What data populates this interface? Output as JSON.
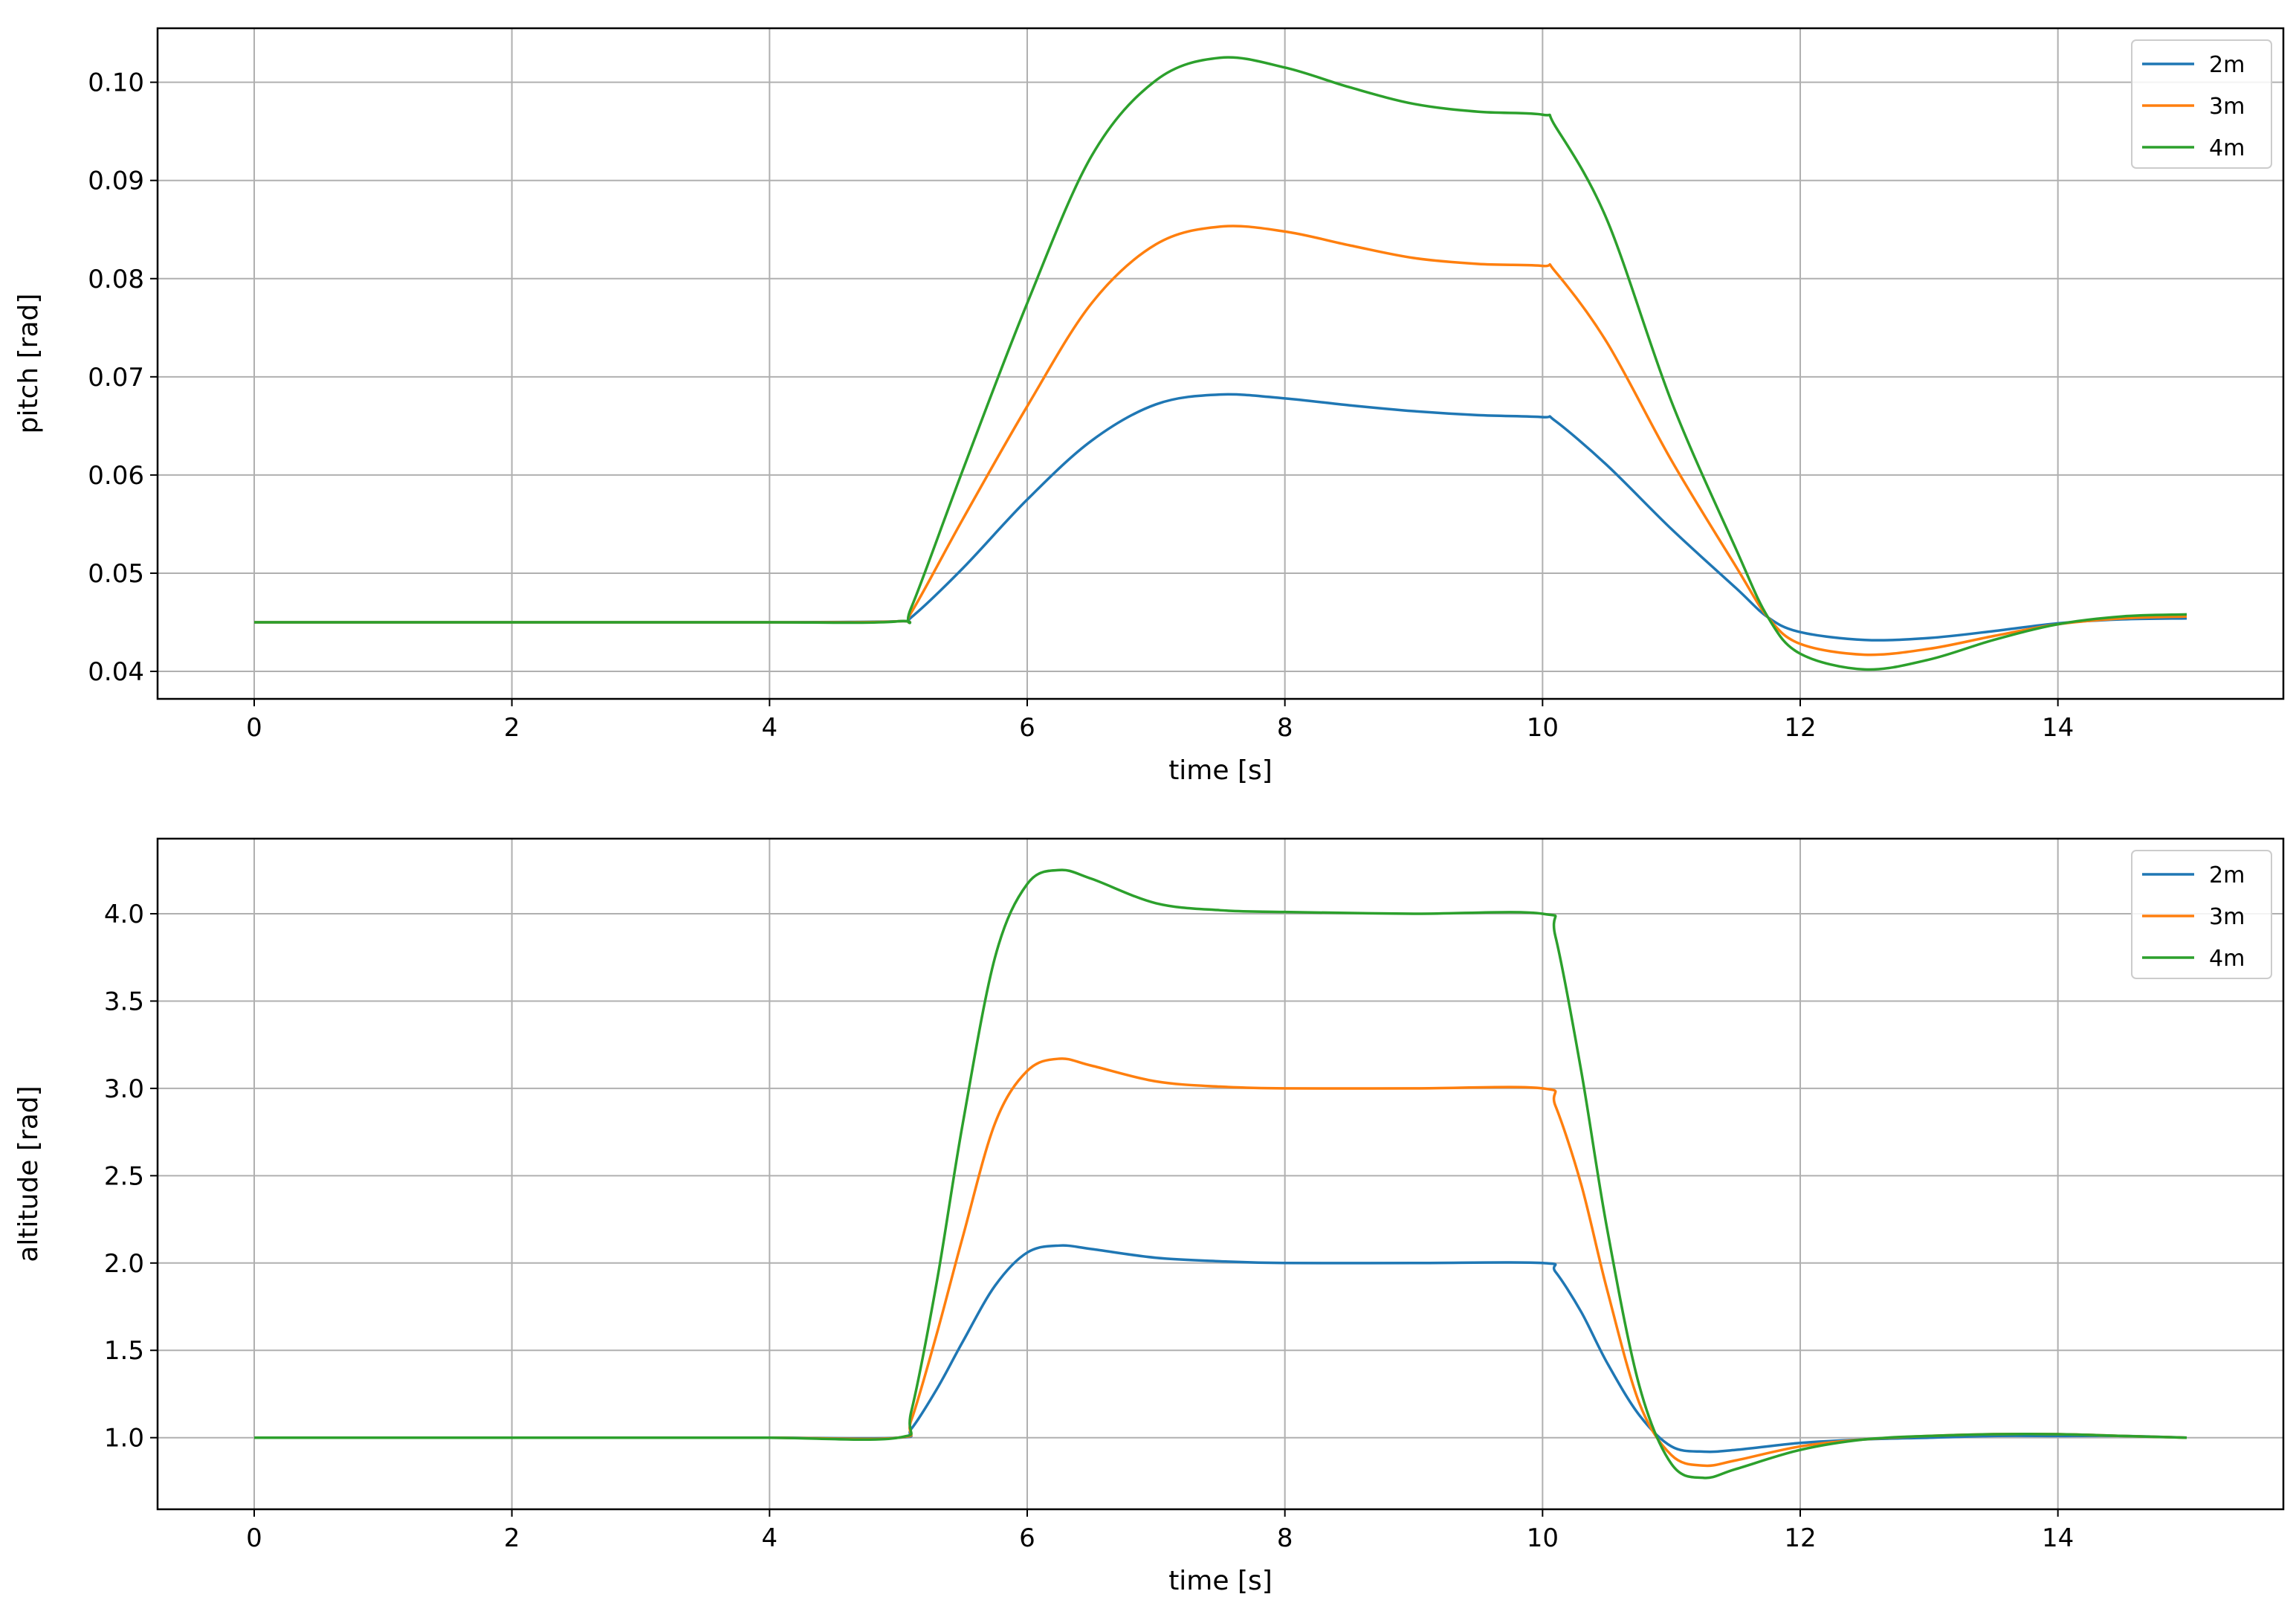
{
  "chart_data": [
    {
      "type": "line",
      "xlabel": "time [s]",
      "ylabel": "pitch [rad]",
      "xlim": [
        -0.75,
        15.75
      ],
      "ylim": [
        0.0372,
        0.1055
      ],
      "x_ticks": [
        0,
        2,
        4,
        6,
        8,
        10,
        12,
        14
      ],
      "x_tick_labels": [
        "0",
        "2",
        "4",
        "6",
        "8",
        "10",
        "12",
        "14"
      ],
      "y_ticks": [
        0.04,
        0.05,
        0.06,
        0.07,
        0.08,
        0.09,
        0.1
      ],
      "y_tick_labels": [
        "0.04",
        "0.05",
        "0.06",
        "0.07",
        "0.08",
        "0.09",
        "0.10"
      ],
      "grid": true,
      "legend_position": "top-right",
      "x": [
        0,
        1,
        2,
        3,
        4,
        5,
        5.1,
        5.5,
        6,
        6.5,
        7,
        7.5,
        8,
        8.5,
        9,
        9.5,
        10,
        10.1,
        10.5,
        11,
        11.5,
        11.75,
        12,
        12.5,
        13,
        13.5,
        14,
        14.5,
        15
      ],
      "series": [
        {
          "name": "2m",
          "color": "#1f77b4",
          "values": [
            0.045,
            0.045,
            0.045,
            0.045,
            0.045,
            0.0451,
            0.0455,
            0.0505,
            0.0575,
            0.0635,
            0.0672,
            0.0682,
            0.0678,
            0.0671,
            0.0665,
            0.0661,
            0.0659,
            0.0655,
            0.061,
            0.0545,
            0.0485,
            0.0455,
            0.044,
            0.0432,
            0.0434,
            0.0441,
            0.0449,
            0.0453,
            0.0454
          ]
        },
        {
          "name": "3m",
          "color": "#ff7f0e",
          "values": [
            0.045,
            0.045,
            0.045,
            0.045,
            0.045,
            0.0451,
            0.046,
            0.0555,
            0.067,
            0.0775,
            0.0835,
            0.0853,
            0.0848,
            0.0834,
            0.0821,
            0.0815,
            0.0813,
            0.0807,
            0.0735,
            0.0615,
            0.0507,
            0.0455,
            0.0428,
            0.0417,
            0.0423,
            0.0436,
            0.0448,
            0.0454,
            0.0456
          ]
        },
        {
          "name": "4m",
          "color": "#2ca02c",
          "values": [
            0.045,
            0.045,
            0.045,
            0.045,
            0.045,
            0.0451,
            0.0465,
            0.0605,
            0.0775,
            0.0925,
            0.1002,
            0.1025,
            0.1015,
            0.0995,
            0.0978,
            0.097,
            0.0967,
            0.0955,
            0.086,
            0.0675,
            0.0525,
            0.0455,
            0.0418,
            0.0402,
            0.0412,
            0.0432,
            0.0448,
            0.0456,
            0.0458
          ]
        }
      ]
    },
    {
      "type": "line",
      "xlabel": "time [s]",
      "ylabel": "altitude [rad]",
      "xlim": [
        -0.75,
        15.75
      ],
      "ylim": [
        0.59,
        4.43
      ],
      "x_ticks": [
        0,
        2,
        4,
        6,
        8,
        10,
        12,
        14
      ],
      "x_tick_labels": [
        "0",
        "2",
        "4",
        "6",
        "8",
        "10",
        "12",
        "14"
      ],
      "y_ticks": [
        1.0,
        1.5,
        2.0,
        2.5,
        3.0,
        3.5,
        4.0
      ],
      "y_tick_labels": [
        "1.0",
        "1.5",
        "2.0",
        "2.5",
        "3.0",
        "3.5",
        "4.0"
      ],
      "grid": true,
      "legend_position": "top-right",
      "x": [
        0,
        1,
        2,
        3,
        4,
        5,
        5.1,
        5.3,
        5.5,
        5.75,
        6,
        6.25,
        6.5,
        7,
        7.5,
        8,
        9,
        10,
        10.1,
        10.3,
        10.5,
        10.75,
        11,
        11.25,
        11.5,
        12,
        12.5,
        13,
        13.5,
        14,
        14.5,
        15
      ],
      "series": [
        {
          "name": "2m",
          "color": "#1f77b4",
          "values": [
            1.0,
            1.0,
            1.0,
            1.0,
            1.0,
            1.0,
            1.05,
            1.28,
            1.55,
            1.87,
            2.06,
            2.1,
            2.08,
            2.03,
            2.01,
            2.0,
            2.0,
            2.0,
            1.95,
            1.72,
            1.43,
            1.13,
            0.95,
            0.92,
            0.93,
            0.97,
            0.99,
            1.0,
            1.01,
            1.01,
            1.01,
            1.0
          ]
        },
        {
          "name": "3m",
          "color": "#ff7f0e",
          "values": [
            1.0,
            1.0,
            1.0,
            1.0,
            1.0,
            1.0,
            1.1,
            1.6,
            2.15,
            2.8,
            3.1,
            3.17,
            3.13,
            3.04,
            3.01,
            3.0,
            3.0,
            3.0,
            2.9,
            2.45,
            1.85,
            1.2,
            0.9,
            0.84,
            0.87,
            0.95,
            0.99,
            1.01,
            1.02,
            1.02,
            1.01,
            1.0
          ]
        },
        {
          "name": "4m",
          "color": "#2ca02c",
          "values": [
            1.0,
            1.0,
            1.0,
            1.0,
            1.0,
            1.0,
            1.15,
            1.9,
            2.8,
            3.75,
            4.17,
            4.25,
            4.2,
            4.06,
            4.02,
            4.01,
            4.0,
            4.0,
            3.87,
            3.1,
            2.2,
            1.3,
            0.85,
            0.77,
            0.82,
            0.93,
            0.99,
            1.01,
            1.02,
            1.02,
            1.01,
            1.0
          ]
        }
      ]
    }
  ]
}
